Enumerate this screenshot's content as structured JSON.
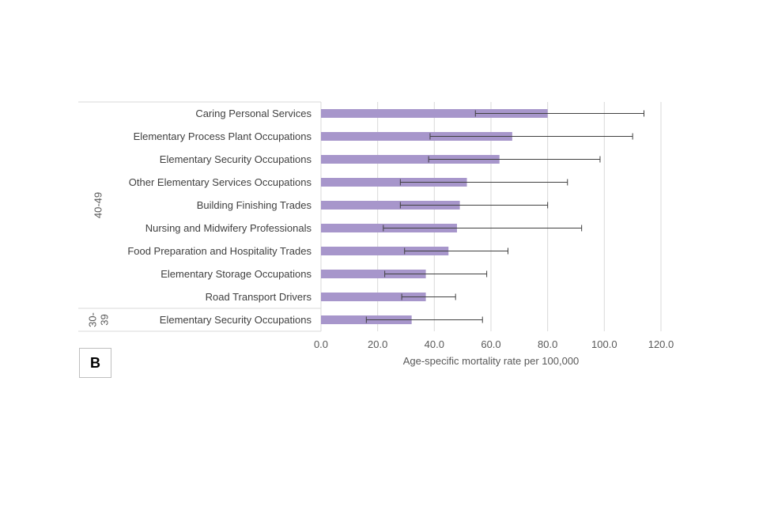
{
  "panel_label": "B",
  "colors": {
    "bar": "#a796cb",
    "grid": "#d9d9d9",
    "error_bar": "#404040",
    "divider": "#d9d9d9"
  },
  "chart_data": {
    "type": "bar",
    "orientation": "horizontal",
    "xlabel": "Age-specific mortality rate per 100,000",
    "xlim": [
      0,
      120
    ],
    "xticks": [
      "0.0",
      "20.0",
      "40.0",
      "60.0",
      "80.0",
      "100.0",
      "120.0"
    ],
    "grid": true,
    "groups": [
      {
        "label": "40-49",
        "categories": [
          "Caring Personal Services",
          "Elementary Process Plant Occupations",
          "Elementary Security Occupations",
          "Other Elementary Services Occupations",
          "Building Finishing Trades",
          "Nursing and Midwifery Professionals",
          "Food Preparation and Hospitality Trades",
          "Elementary Storage Occupations",
          "Road Transport Drivers"
        ],
        "values": [
          80.0,
          67.5,
          63.0,
          51.5,
          49.0,
          48.0,
          45.0,
          37.0,
          37.0
        ],
        "lower": [
          54.5,
          38.5,
          38.0,
          28.0,
          28.0,
          22.0,
          29.5,
          22.5,
          28.5
        ],
        "upper": [
          114.0,
          110.0,
          98.5,
          87.0,
          80.0,
          92.0,
          66.0,
          58.5,
          47.5
        ]
      },
      {
        "label": "30-39",
        "categories": [
          "Elementary Security Occupations"
        ],
        "values": [
          32.0
        ],
        "lower": [
          16.0
        ],
        "upper": [
          57.0
        ]
      }
    ]
  }
}
